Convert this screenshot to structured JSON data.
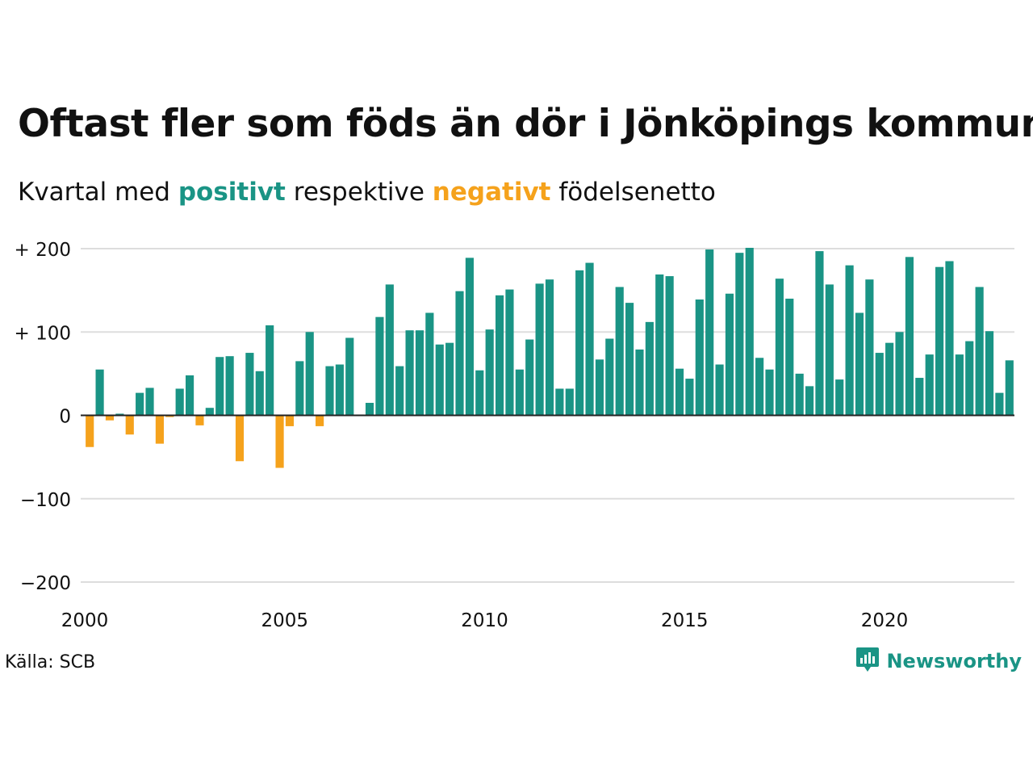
{
  "header": {
    "title": "Oftast fler som föds än dör i Jönköpings kommun",
    "subtitle_pre": "Kvartal med",
    "subtitle_pos": "positivt",
    "subtitle_mid": "respektive",
    "subtitle_neg": "negativt",
    "subtitle_post": "födelsenetto"
  },
  "footer": {
    "source": "Källa: SCB",
    "brand": "Newsworthy",
    "brand_icon": "bar-chart-speech-bubble-icon"
  },
  "colors": {
    "positive": "#1a9485",
    "negative": "#f5a21c",
    "grid": "#dddddd",
    "zero_line": "#222222"
  },
  "chart_data": {
    "type": "bar",
    "x_start": 2000.0,
    "x_step": 0.25,
    "xlim": [
      2000,
      2023.25
    ],
    "ylim": [
      -200,
      200
    ],
    "y_ticks": [
      200,
      100,
      0,
      -100,
      -200
    ],
    "y_tick_labels": [
      "+ 200",
      "+ 100",
      "0",
      "−100",
      "−200"
    ],
    "x_ticks": [
      2000,
      2005,
      2010,
      2015,
      2020
    ],
    "x_tick_labels": [
      "2000",
      "2005",
      "2010",
      "2015",
      "2020"
    ],
    "grid": true,
    "values": [
      -38,
      55,
      -6,
      2,
      -23,
      27,
      33,
      -34,
      -2,
      32,
      48,
      -12,
      9,
      70,
      71,
      -55,
      75,
      53,
      108,
      -63,
      -13,
      65,
      100,
      -13,
      59,
      61,
      93,
      1,
      15,
      118,
      157,
      59,
      102,
      102,
      123,
      85,
      87,
      149,
      189,
      54,
      103,
      144,
      151,
      55,
      91,
      158,
      163,
      32,
      32,
      174,
      183,
      67,
      92,
      154,
      135,
      79,
      112,
      169,
      167,
      56,
      44,
      139,
      199,
      61,
      146,
      195,
      201,
      69,
      55,
      164,
      140,
      50,
      35,
      197,
      157,
      43,
      180,
      123,
      163,
      75,
      87,
      100,
      190,
      45,
      73,
      178,
      185,
      73,
      89,
      154,
      101,
      27,
      66
    ]
  }
}
